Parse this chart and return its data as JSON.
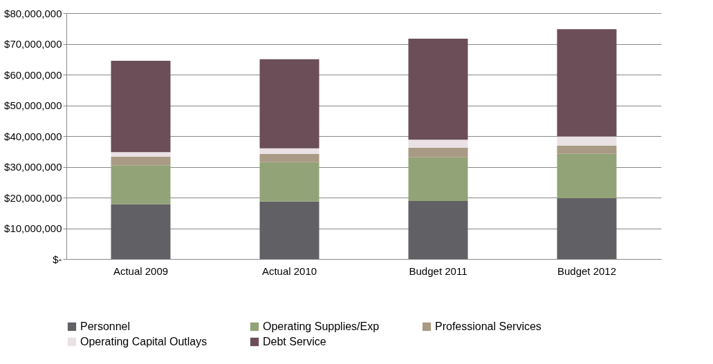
{
  "chart_data": {
    "type": "bar",
    "stacked": true,
    "categories": [
      "Actual 2009",
      "Actual 2010",
      "Budget 2011",
      "Budget 2012"
    ],
    "series": [
      {
        "name": "Personnel",
        "color": "#616065",
        "values": [
          17800000,
          18700000,
          18900000,
          19800000
        ]
      },
      {
        "name": "Operating Supplies/Exp",
        "color": "#93a378",
        "values": [
          12700000,
          12800000,
          14200000,
          14400000
        ]
      },
      {
        "name": "Professional Services",
        "color": "#a99a85",
        "values": [
          2800000,
          2700000,
          3100000,
          2700000
        ]
      },
      {
        "name": "Operating Capital Outlays",
        "color": "#e9e1e3",
        "values": [
          1500000,
          1800000,
          2600000,
          3000000
        ]
      },
      {
        "name": "Debt Service",
        "color": "#6b4e57",
        "values": [
          29700000,
          29000000,
          32900000,
          34900000
        ]
      }
    ],
    "ylim": [
      0,
      80000000
    ],
    "yticks": [
      {
        "value": 0,
        "label": "$-"
      },
      {
        "value": 10000000,
        "label": "$10,000,000"
      },
      {
        "value": 20000000,
        "label": "$20,000,000"
      },
      {
        "value": 30000000,
        "label": "$30,000,000"
      },
      {
        "value": 40000000,
        "label": "$40,000,000"
      },
      {
        "value": 50000000,
        "label": "$50,000,000"
      },
      {
        "value": 60000000,
        "label": "$60,000,000"
      },
      {
        "value": 70000000,
        "label": "$70,000,000"
      },
      {
        "value": 80000000,
        "label": "$80,000,000"
      }
    ],
    "grid": "y",
    "legend": "bottom"
  }
}
